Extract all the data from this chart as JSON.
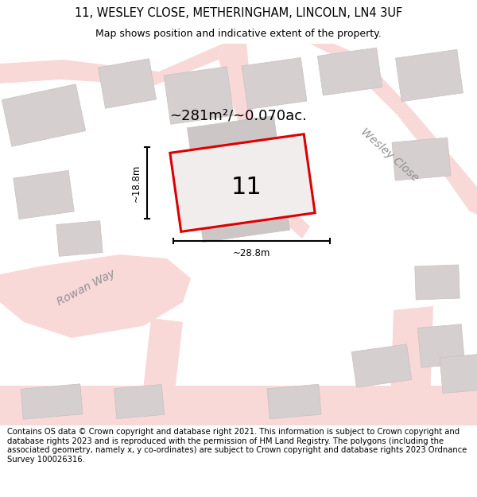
{
  "title_line1": "11, WESLEY CLOSE, METHERINGHAM, LINCOLN, LN4 3UF",
  "title_line2": "Map shows position and indicative extent of the property.",
  "footer_text": "Contains OS data © Crown copyright and database right 2021. This information is subject to Crown copyright and database rights 2023 and is reproduced with the permission of HM Land Registry. The polygons (including the associated geometry, namely x, y co-ordinates) are subject to Crown copyright and database rights 2023 Ordnance Survey 100026316.",
  "map_bg": "#f2eded",
  "road_fill": "#f9d8d8",
  "road_line": "#e8a8a8",
  "building_color": "#d6cfcf",
  "building_edge": "#c8c0c0",
  "highlight_color": "#dd0000",
  "highlight_fill": "#f2eded",
  "street_label_1": "Rowan Way",
  "street_label_2": "Wesley Close",
  "plot_label": "11",
  "area_label": "~281m²/~0.070ac.",
  "dim_width": "~28.8m",
  "dim_height": "~18.8m",
  "title_fontsize": 10.5,
  "subtitle_fontsize": 9,
  "footer_fontsize": 7.2,
  "street_fontsize": 10,
  "area_fontsize": 13,
  "plot_label_fontsize": 22,
  "dim_fontsize": 8.5
}
